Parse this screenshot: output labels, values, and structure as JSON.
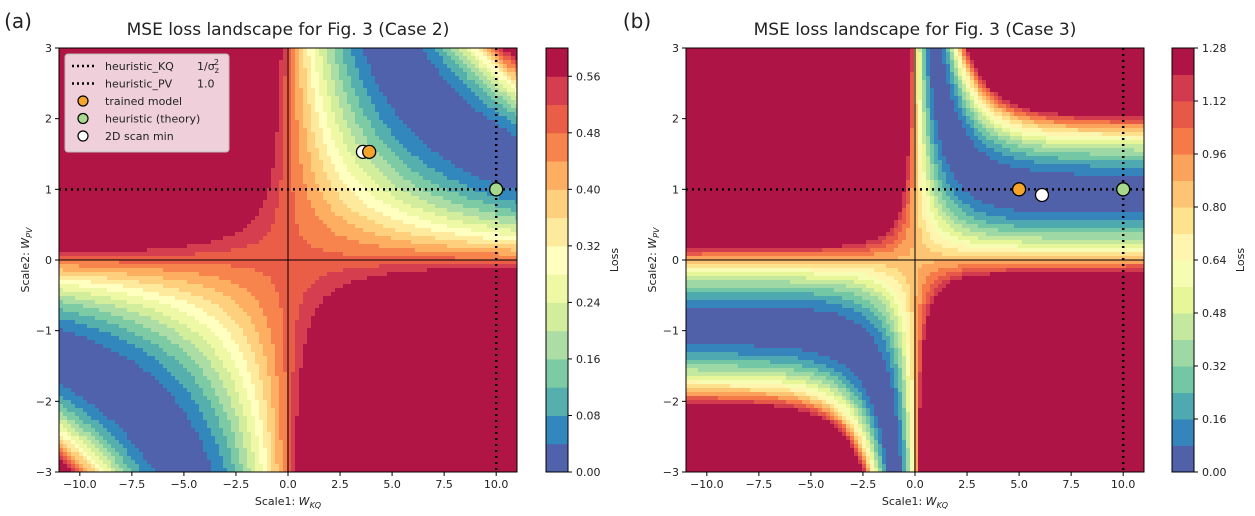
{
  "chart_data": [
    {
      "type": "contour",
      "panel_label": "(a)",
      "title": "MSE loss landscape for Fig. 3 (Case 2)",
      "xlabel": "Scale1: W_KQ",
      "ylabel": "Scale2: W_PV",
      "xlim": [
        -11,
        11
      ],
      "ylim": [
        -3,
        3
      ],
      "xticks": [
        -10.0,
        -7.5,
        -5.0,
        -2.5,
        0.0,
        2.5,
        5.0,
        7.5,
        10.0
      ],
      "yticks": [
        -3,
        -2,
        -1,
        0,
        1,
        2,
        3
      ],
      "surface": {
        "model": "quadratic-product",
        "target": 15,
        "scale": 0.0022
      },
      "heuristic_KQ": 10.0,
      "heuristic_PV": 1.0,
      "points": {
        "trained_model": [
          3.9,
          1.53
        ],
        "heuristic_theory": [
          10.0,
          1.0
        ],
        "scan_min": [
          3.6,
          1.53
        ]
      },
      "colorbar": {
        "label": "Loss",
        "ticks": [
          0.0,
          0.08,
          0.16,
          0.24,
          0.32,
          0.4,
          0.48,
          0.56
        ],
        "tick_labels": [
          "0.00",
          "0.08",
          "0.16",
          "0.24",
          "0.32",
          "0.40",
          "0.48",
          "0.56"
        ],
        "range": [
          0,
          0.6
        ],
        "levels": 15
      },
      "legend": {
        "position": "top-left",
        "entries": [
          {
            "label": "heuristic_KQ",
            "value": "1/σ_z²",
            "style": "dotted-line"
          },
          {
            "label": "heuristic_PV",
            "value": "1.0",
            "style": "dotted-line"
          },
          {
            "label": "trained model",
            "style": "marker-orange"
          },
          {
            "label": "heuristic (theory)",
            "style": "marker-green"
          },
          {
            "label": "2D scan min",
            "style": "marker-white"
          }
        ]
      }
    },
    {
      "type": "contour",
      "panel_label": "(b)",
      "title": "MSE loss landscape for Fig. 3 (Case 3)",
      "xlabel": "Scale1: W_KQ",
      "ylabel": "Scale2: W_PV",
      "xlim": [
        -11,
        11
      ],
      "ylim": [
        -3,
        3
      ],
      "xticks": [
        -10.0,
        -7.5,
        -5.0,
        -2.5,
        0.0,
        2.5,
        5.0,
        7.5,
        10.0
      ],
      "yticks": [
        -3,
        -2,
        -1,
        0,
        1,
        2,
        3
      ],
      "surface": {
        "model": "saturating-product",
        "target": 0.93,
        "scale": 1.0
      },
      "heuristic_KQ": 10.0,
      "heuristic_PV": 1.0,
      "points": {
        "trained_model": [
          5.0,
          1.0
        ],
        "heuristic_theory": [
          10.0,
          1.0
        ],
        "scan_min": [
          6.1,
          0.92
        ]
      },
      "colorbar": {
        "label": "Loss",
        "ticks": [
          0.0,
          0.16,
          0.32,
          0.48,
          0.64,
          0.8,
          0.96,
          1.12,
          1.28
        ],
        "tick_labels": [
          "0.00",
          "0.16",
          "0.32",
          "0.48",
          "0.64",
          "0.80",
          "0.96",
          "1.12",
          "1.28"
        ],
        "range": [
          0,
          1.28
        ],
        "levels": 16
      }
    }
  ]
}
